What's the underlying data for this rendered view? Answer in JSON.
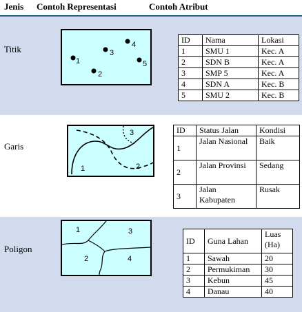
{
  "header": {
    "col1": "Jenis",
    "col2": "Contoh Representasi",
    "col3": "Contoh Atribut"
  },
  "rows": [
    {
      "label": "Titik",
      "map_labels": [
        "1",
        "2",
        "3",
        "4",
        "5"
      ],
      "table": {
        "headers": [
          "ID",
          "Nama",
          "Lokasi"
        ],
        "rows": [
          [
            "1",
            "SMU 1",
            "Kec. A"
          ],
          [
            "2",
            "SDN B",
            "Kec. A"
          ],
          [
            "3",
            "SMP 5",
            "Kec. A"
          ],
          [
            "4",
            "SDN A",
            "Kec. B"
          ],
          [
            "5",
            "SMU 2",
            "Kec. B"
          ]
        ]
      }
    },
    {
      "label": "Garis",
      "map_labels": [
        "1",
        "2",
        "3"
      ],
      "table": {
        "headers": [
          "ID",
          "Status Jalan",
          "Kondisi"
        ],
        "rows": [
          [
            "1",
            "Jalan Nasional",
            "Baik"
          ],
          [
            "2",
            "Jalan Provinsi",
            "Sedang"
          ],
          [
            "3",
            "Jalan Kabupaten",
            "Rusak"
          ]
        ]
      }
    },
    {
      "label": "Poligon",
      "map_labels": [
        "1",
        "2",
        "3",
        "4"
      ],
      "table": {
        "headers": [
          "ID",
          "Guna Lahan",
          "Luas (Ha)"
        ],
        "rows": [
          [
            "1",
            "Sawah",
            "20"
          ],
          [
            "2",
            "Permukiman",
            "30"
          ],
          [
            "3",
            "Kebun",
            "45"
          ],
          [
            "4",
            "Danau",
            "40"
          ]
        ]
      }
    }
  ]
}
